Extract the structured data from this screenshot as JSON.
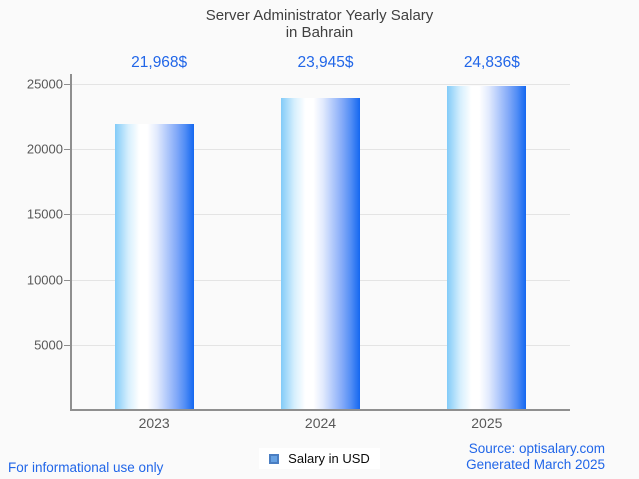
{
  "chart": {
    "title_line1": "Server Administrator Yearly Salary",
    "title_line2": "in Bahrain"
  },
  "chart_data": {
    "type": "bar",
    "title": "Server Administrator Yearly Salary in Bahrain",
    "categories": [
      "2023",
      "2024",
      "2025"
    ],
    "values": [
      21968,
      23945,
      24836
    ],
    "value_labels": [
      "21,968$",
      "23,945$",
      "24,836$"
    ],
    "series_name": "Salary in USD",
    "xlabel": "",
    "ylabel": "",
    "ylim": [
      0,
      25000
    ],
    "yticks": [
      5000,
      10000,
      15000,
      20000,
      25000
    ],
    "ytick_labels": [
      "5000",
      "10000",
      "15000",
      "20000",
      "25000"
    ],
    "grid": true,
    "legend_position": "bottom"
  },
  "legend": {
    "label": "Salary in USD"
  },
  "footer": {
    "disclaimer": "For informational use only",
    "source": "Source: optisalary.com",
    "generated": "Generated March 2025"
  },
  "colors": {
    "background": "#fafafa",
    "title_gray": "#3f3f3f",
    "axis_text": "#585858",
    "grid_line": "#e4e4e4",
    "axis_line": "#8f8f8f",
    "accent_blue": "#2166e8",
    "bar_gradient_left": "#82cbf8",
    "bar_gradient_mid": "#ffffff",
    "bar_gradient_right": "#1467f0",
    "legend_swatch_fill": "#66a1e2",
    "legend_swatch_border": "#4a7ec2"
  }
}
